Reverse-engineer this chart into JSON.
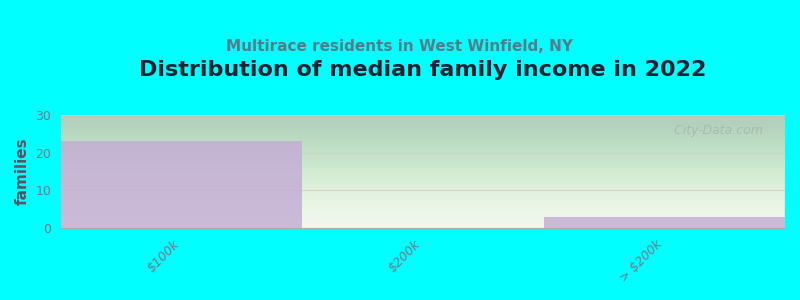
{
  "title": "Distribution of median family income in 2022",
  "subtitle": "Multirace residents in West Winfield, NY",
  "categories": [
    "$100k",
    "$200k",
    "> $200k"
  ],
  "values": [
    23,
    0,
    3
  ],
  "bar_color": "#c4aed4",
  "background_color": "#00ffff",
  "ylabel": "families",
  "ylim": [
    0,
    30
  ],
  "yticks": [
    0,
    10,
    20,
    30
  ],
  "watermark": "  City-Data.com",
  "title_fontsize": 16,
  "subtitle_fontsize": 11,
  "title_color": "#222233",
  "subtitle_color": "#5a7a8a",
  "ylabel_color": "#555566",
  "tick_color": "#777788",
  "grid_color": "#ddcccc",
  "tick_label_fontsize": 9
}
